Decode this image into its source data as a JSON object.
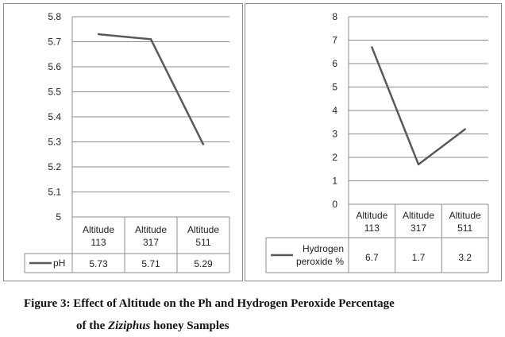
{
  "chart_data": [
    {
      "type": "line",
      "categories": [
        "Altitude 113",
        "Altitude 317",
        "Altitude 511"
      ],
      "series": [
        {
          "name": "pH",
          "values": [
            5.73,
            5.71,
            5.29
          ],
          "color": "#595959"
        }
      ],
      "table_values": [
        "5.73",
        "5.71",
        "5.29"
      ],
      "ylim": [
        5,
        5.8
      ],
      "yticks": [
        "5",
        "5.1",
        "5.2",
        "5.3",
        "5.4",
        "5.5",
        "5.6",
        "5.7",
        "5.8"
      ],
      "grid": true,
      "legend": "data-table",
      "title": "",
      "xlabel": "",
      "ylabel": ""
    },
    {
      "type": "line",
      "categories": [
        "Altitude 113",
        "Altitude 317",
        "Altitude 511"
      ],
      "series": [
        {
          "name": "Hydrogen peroxide %",
          "values": [
            6.7,
            1.7,
            3.2
          ],
          "color": "#595959"
        }
      ],
      "table_values": [
        "6.7",
        "1.7",
        "3.2"
      ],
      "ylim": [
        0,
        8
      ],
      "yticks": [
        "0",
        "1",
        "2",
        "3",
        "4",
        "5",
        "6",
        "7",
        "8"
      ],
      "grid": true,
      "legend": "data-table",
      "title": "",
      "xlabel": "",
      "ylabel": ""
    }
  ],
  "caption": {
    "line1": "Figure 3: Effect of Altitude on the Ph and Hydrogen Peroxide Percentage",
    "line2_prefix": "of the ",
    "line2_italic": "Ziziphus",
    "line2_suffix": " honey Samples"
  }
}
